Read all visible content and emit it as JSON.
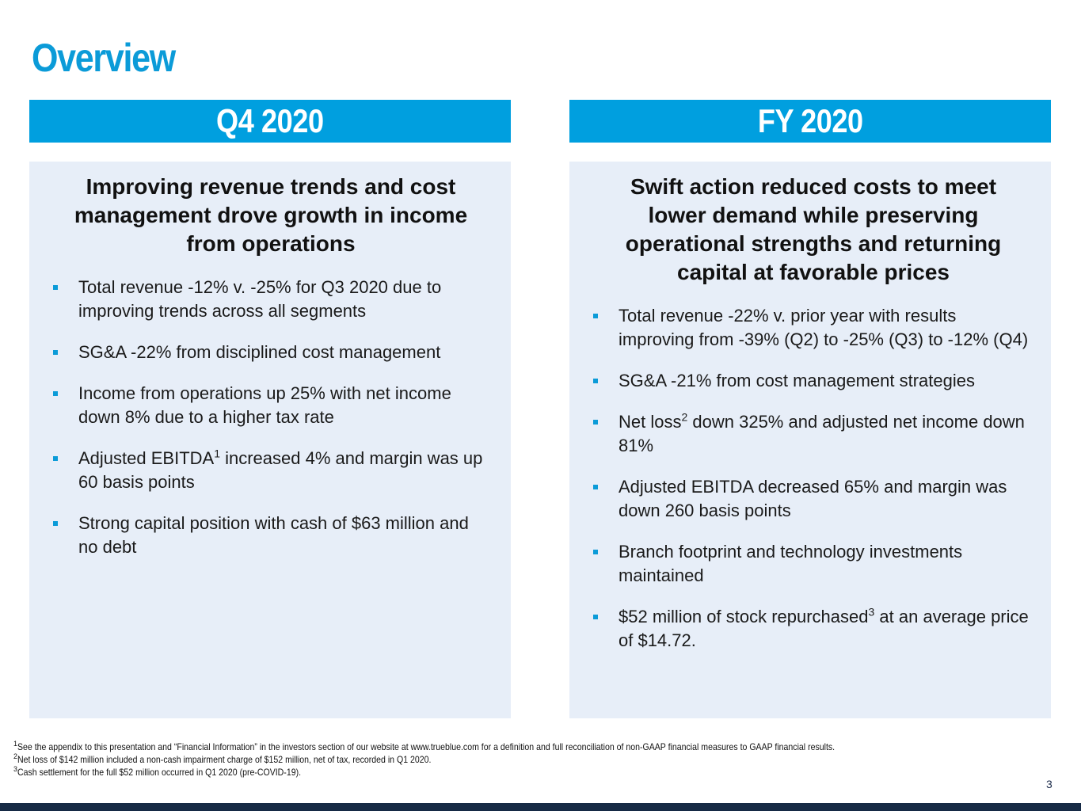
{
  "page": {
    "title": "Overview",
    "page_number": "3"
  },
  "colors": {
    "accent": "#009fdf",
    "title": "#0b9bd8",
    "panel_bg": "#e7eef8",
    "bottom_bar": "#162a45"
  },
  "left": {
    "header": "Q4 2020",
    "heading": "Improving revenue trends and cost management drove growth in income from operations",
    "bullets": [
      {
        "text": "Total revenue -12% v. -25% for Q3 2020 due to improving trends across all segments"
      },
      {
        "text": "SG&A -22% from disciplined cost management"
      },
      {
        "text": "Income from operations up 25% with net income down 8% due to a higher tax rate"
      },
      {
        "pre": "Adjusted EBITDA",
        "sup": "1",
        "post": " increased 4% and margin was up 60 basis points"
      },
      {
        "text": "Strong capital position with cash of $63 million and no debt"
      }
    ]
  },
  "right": {
    "header": "FY 2020",
    "heading": "Swift action reduced costs to meet lower demand while preserving operational strengths and returning capital at favorable prices",
    "bullets": [
      {
        "text": "Total revenue -22% v. prior year with results improving from -39% (Q2) to -25% (Q3) to -12% (Q4)"
      },
      {
        "text": "SG&A -21% from cost management strategies"
      },
      {
        "pre": "Net loss",
        "sup": "2",
        "post": " down 325% and adjusted net income down 81%"
      },
      {
        "text": "Adjusted EBITDA decreased 65% and margin was down 260 basis points"
      },
      {
        "text": "Branch footprint and technology investments maintained"
      },
      {
        "pre": "$52 million of stock repurchased",
        "sup": "3",
        "post": " at an average price of $14.72."
      }
    ]
  },
  "footnotes": [
    {
      "num": "1",
      "text": "See the appendix to this presentation and “Financial Information” in the investors section of our website at www.trueblue.com for a definition and full reconciliation of non-GAAP financial measures to GAAP financial results."
    },
    {
      "num": "2",
      "text": "Net loss of $142 million included a non-cash impairment charge of $152 million, net of tax, recorded in Q1 2020."
    },
    {
      "num": "3",
      "text": "Cash settlement for the full $52 million occurred in Q1 2020 (pre-COVID-19)."
    }
  ]
}
